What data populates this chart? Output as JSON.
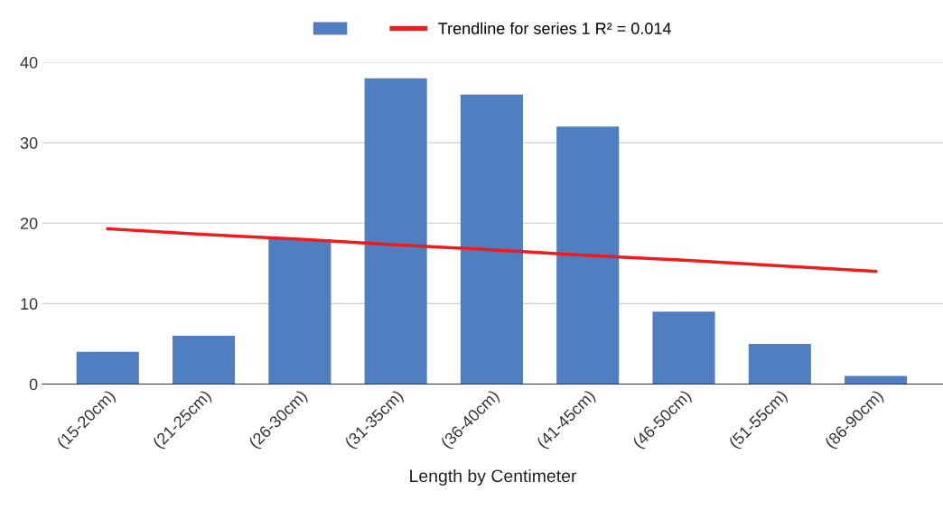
{
  "chart_data": {
    "type": "bar",
    "xlabel": "Length by Centimeter",
    "categories": [
      "(15-20cm)",
      "(21-25cm)",
      "(26-30cm)",
      "(31-35cm)",
      "(36-40cm)",
      "(41-45cm)",
      "(46-50cm)",
      "(51-55cm)",
      "(86-90cm)"
    ],
    "series": [
      {
        "color": "#4f7ec1",
        "values": [
          4,
          6,
          18,
          38,
          36,
          32,
          9,
          5,
          1
        ]
      },
      {
        "type": "line",
        "name": "Trendline for series 1 R² = 0.014",
        "color": "#ee1c1c",
        "values": [
          19.3,
          18.6,
          18.0,
          17.3,
          16.7,
          16.0,
          15.4,
          14.7,
          14.0
        ]
      }
    ],
    "ylim": [
      0,
      40
    ],
    "yticks": [
      0,
      10,
      20,
      30,
      40
    ],
    "grid": "y",
    "legend": "top"
  }
}
